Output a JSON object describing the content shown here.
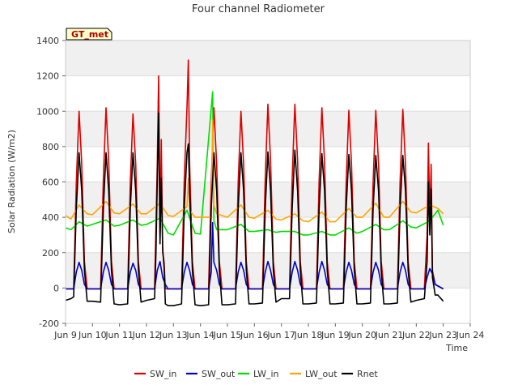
{
  "chart_data": {
    "type": "line",
    "title": "Four channel Radiometer",
    "xlabel": "Time",
    "ylabel": "Solar Radiation (W/m2)",
    "badge": "GT_met",
    "xlim": [
      9,
      24
    ],
    "ylim": [
      -200,
      1400
    ],
    "x_ticks": [
      9,
      10,
      11,
      12,
      13,
      14,
      15,
      16,
      17,
      18,
      19,
      20,
      21,
      22,
      23,
      24
    ],
    "x_tick_labels": [
      "Jun 9",
      "Jun 10",
      "Jun 11",
      "Jun 12",
      "Jun 13",
      "Jun 14",
      "Jun 15",
      "Jun 16",
      "Jun 17",
      "Jun 18",
      "Jun 19",
      "Jun 20",
      "Jun 21",
      "Jun 22",
      "Jun 23",
      "Jun 24"
    ],
    "y_ticks": [
      -200,
      0,
      200,
      400,
      600,
      800,
      1000,
      1200,
      1400
    ],
    "y_tick_labels": [
      "-200",
      "0",
      "200",
      "400",
      "600",
      "800",
      "1000",
      "1200",
      "1400"
    ],
    "series": [
      {
        "name": "SW_in",
        "color": "#dd0000",
        "x": [
          9.0,
          9.3,
          9.4,
          9.5,
          9.6,
          9.7,
          9.8,
          10.0,
          10.3,
          10.4,
          10.5,
          10.6,
          10.7,
          10.8,
          11.0,
          11.3,
          11.4,
          11.5,
          11.6,
          11.7,
          11.8,
          12.0,
          12.3,
          12.4,
          12.45,
          12.5,
          12.55,
          12.6,
          12.65,
          12.7,
          12.8,
          13.0,
          13.3,
          13.4,
          13.5,
          13.55,
          13.6,
          13.7,
          13.8,
          14.0,
          14.3,
          14.4,
          14.5,
          14.6,
          14.7,
          14.8,
          15.0,
          15.3,
          15.4,
          15.5,
          15.6,
          15.7,
          15.8,
          16.0,
          16.3,
          16.4,
          16.5,
          16.6,
          16.7,
          16.8,
          17.0,
          17.3,
          17.4,
          17.5,
          17.6,
          17.7,
          17.8,
          18.0,
          18.3,
          18.4,
          18.5,
          18.6,
          18.7,
          18.8,
          19.0,
          19.3,
          19.4,
          19.5,
          19.6,
          19.7,
          19.8,
          20.0,
          20.3,
          20.4,
          20.5,
          20.6,
          20.7,
          20.8,
          21.0,
          21.3,
          21.4,
          21.5,
          21.6,
          21.7,
          21.8,
          22.0,
          22.3,
          22.4,
          22.45,
          22.5,
          22.55,
          22.6,
          22.7,
          23.0
        ],
        "y": [
          -5,
          -5,
          600,
          1000,
          700,
          150,
          -5,
          -5,
          -5,
          620,
          1020,
          720,
          150,
          -5,
          -5,
          -5,
          600,
          985,
          700,
          150,
          -5,
          -5,
          -5,
          700,
          1200,
          300,
          840,
          200,
          150,
          -5,
          -5,
          -5,
          -5,
          620,
          1020,
          1290,
          700,
          150,
          -5,
          -5,
          -5,
          600,
          1020,
          700,
          150,
          -5,
          -5,
          -5,
          600,
          1000,
          700,
          150,
          -5,
          -5,
          -5,
          620,
          1040,
          720,
          150,
          -5,
          -5,
          -5,
          620,
          1040,
          720,
          150,
          -5,
          -5,
          -5,
          610,
          1020,
          710,
          150,
          -5,
          -5,
          -5,
          600,
          1005,
          700,
          150,
          -5,
          -5,
          -5,
          600,
          1005,
          700,
          150,
          -5,
          -5,
          -5,
          600,
          1010,
          700,
          150,
          -5,
          -5,
          -5,
          300,
          820,
          400,
          700,
          100,
          20,
          -5
        ]
      },
      {
        "name": "SW_out",
        "color": "#0000cc",
        "x": [
          9.0,
          9.3,
          9.4,
          9.5,
          9.6,
          9.7,
          9.8,
          10.0,
          10.3,
          10.4,
          10.5,
          10.6,
          10.7,
          10.8,
          11.0,
          11.3,
          11.4,
          11.5,
          11.6,
          11.7,
          11.8,
          12.0,
          12.3,
          12.4,
          12.5,
          12.6,
          12.7,
          12.8,
          13.0,
          13.3,
          13.4,
          13.5,
          13.6,
          13.7,
          13.8,
          14.0,
          14.3,
          14.4,
          14.45,
          14.5,
          14.6,
          14.7,
          14.8,
          15.0,
          15.3,
          15.4,
          15.5,
          15.6,
          15.7,
          15.8,
          16.0,
          16.3,
          16.4,
          16.5,
          16.6,
          16.7,
          16.8,
          17.0,
          17.3,
          17.4,
          17.5,
          17.6,
          17.7,
          17.8,
          18.0,
          18.3,
          18.4,
          18.5,
          18.6,
          18.7,
          18.8,
          19.0,
          19.3,
          19.4,
          19.5,
          19.6,
          19.7,
          19.8,
          20.0,
          20.3,
          20.4,
          20.5,
          20.6,
          20.7,
          20.8,
          21.0,
          21.3,
          21.4,
          21.5,
          21.6,
          21.7,
          21.8,
          22.0,
          22.3,
          22.4,
          22.5,
          22.6,
          22.7,
          23.0
        ],
        "y": [
          -5,
          -5,
          90,
          145,
          100,
          20,
          -5,
          -5,
          -5,
          90,
          145,
          100,
          20,
          -5,
          -5,
          -5,
          90,
          140,
          100,
          20,
          -5,
          -5,
          -5,
          100,
          150,
          60,
          20,
          -5,
          -5,
          -5,
          90,
          145,
          100,
          20,
          -5,
          -5,
          -5,
          90,
          370,
          145,
          100,
          20,
          -5,
          -5,
          -5,
          90,
          145,
          100,
          20,
          -5,
          -5,
          -5,
          90,
          150,
          100,
          20,
          -5,
          -5,
          -5,
          90,
          150,
          100,
          20,
          -5,
          -5,
          -5,
          90,
          150,
          100,
          20,
          -5,
          -5,
          -5,
          90,
          145,
          100,
          20,
          -5,
          -5,
          -5,
          90,
          145,
          100,
          20,
          -5,
          -5,
          -5,
          90,
          145,
          100,
          20,
          -5,
          -5,
          -5,
          60,
          110,
          80,
          20,
          -5
        ]
      },
      {
        "name": "LW_in",
        "color": "#00dd00",
        "x": [
          9.0,
          9.2,
          9.5,
          9.8,
          10.0,
          10.5,
          10.8,
          11.0,
          11.5,
          11.8,
          12.0,
          12.5,
          12.8,
          13.0,
          13.5,
          13.8,
          14.0,
          14.45,
          14.5,
          14.6,
          15.0,
          15.5,
          15.8,
          16.0,
          16.5,
          16.8,
          17.0,
          17.5,
          17.8,
          18.0,
          18.5,
          18.8,
          19.0,
          19.5,
          19.8,
          20.0,
          20.5,
          20.8,
          21.0,
          21.5,
          21.8,
          22.0,
          22.5,
          22.8,
          23.0
        ],
        "y": [
          340,
          330,
          375,
          350,
          360,
          385,
          350,
          355,
          385,
          355,
          360,
          395,
          310,
          300,
          440,
          310,
          305,
          1110,
          380,
          330,
          330,
          360,
          320,
          320,
          330,
          315,
          320,
          320,
          300,
          300,
          320,
          300,
          300,
          340,
          310,
          320,
          360,
          330,
          330,
          380,
          345,
          340,
          380,
          440,
          355
        ]
      },
      {
        "name": "LW_out",
        "color": "#ffa500",
        "x": [
          9.0,
          9.2,
          9.5,
          9.8,
          10.0,
          10.5,
          10.8,
          11.0,
          11.5,
          11.8,
          12.0,
          12.5,
          12.8,
          13.0,
          13.5,
          13.55,
          13.6,
          13.8,
          14.0,
          14.4,
          14.45,
          14.5,
          14.6,
          15.0,
          15.5,
          15.8,
          16.0,
          16.5,
          16.8,
          17.0,
          17.5,
          17.8,
          18.0,
          18.5,
          18.8,
          19.0,
          19.5,
          19.8,
          20.0,
          20.5,
          20.8,
          21.0,
          21.5,
          21.8,
          22.0,
          22.5,
          22.8,
          23.0
        ],
        "y": [
          410,
          390,
          470,
          420,
          415,
          490,
          425,
          420,
          475,
          420,
          420,
          480,
          410,
          405,
          460,
          620,
          440,
          400,
          400,
          400,
          950,
          470,
          420,
          400,
          470,
          400,
          395,
          440,
          390,
          385,
          420,
          380,
          375,
          430,
          375,
          375,
          450,
          400,
          400,
          480,
          400,
          400,
          490,
          430,
          425,
          470,
          450,
          420
        ]
      },
      {
        "name": "Rnet",
        "color": "#000000",
        "x": [
          9.0,
          9.2,
          9.3,
          9.4,
          9.5,
          9.6,
          9.7,
          9.8,
          10.0,
          10.3,
          10.4,
          10.5,
          10.6,
          10.7,
          10.8,
          11.0,
          11.3,
          11.4,
          11.5,
          11.6,
          11.7,
          11.8,
          12.0,
          12.3,
          12.35,
          12.4,
          12.45,
          12.5,
          12.55,
          12.6,
          12.65,
          12.7,
          12.8,
          13.0,
          13.3,
          13.4,
          13.5,
          13.55,
          13.6,
          13.7,
          13.8,
          14.0,
          14.3,
          14.4,
          14.5,
          14.6,
          14.7,
          14.8,
          15.0,
          15.3,
          15.4,
          15.5,
          15.6,
          15.7,
          15.8,
          16.0,
          16.3,
          16.4,
          16.5,
          16.6,
          16.7,
          16.8,
          17.0,
          17.3,
          17.4,
          17.5,
          17.6,
          17.7,
          17.8,
          18.0,
          18.3,
          18.4,
          18.5,
          18.6,
          18.7,
          18.8,
          19.0,
          19.3,
          19.4,
          19.5,
          19.6,
          19.7,
          19.8,
          20.0,
          20.3,
          20.4,
          20.5,
          20.6,
          20.7,
          20.8,
          21.0,
          21.3,
          21.4,
          21.5,
          21.6,
          21.7,
          21.8,
          22.0,
          22.3,
          22.4,
          22.45,
          22.5,
          22.55,
          22.6,
          22.7,
          22.8,
          23.0
        ],
        "y": [
          -70,
          -60,
          -50,
          450,
          765,
          550,
          100,
          -75,
          -75,
          -80,
          450,
          765,
          550,
          100,
          -90,
          -95,
          -90,
          450,
          765,
          550,
          100,
          -80,
          -70,
          -60,
          200,
          600,
          990,
          250,
          620,
          220,
          120,
          -90,
          -100,
          -100,
          -90,
          450,
          765,
          815,
          550,
          100,
          -95,
          -100,
          -95,
          450,
          765,
          550,
          100,
          -95,
          -95,
          -90,
          450,
          765,
          550,
          100,
          -90,
          -90,
          -85,
          450,
          770,
          550,
          100,
          -80,
          -60,
          -60,
          450,
          780,
          550,
          100,
          -90,
          -90,
          -85,
          450,
          760,
          550,
          100,
          -90,
          -90,
          -85,
          450,
          755,
          550,
          100,
          -90,
          -90,
          -85,
          450,
          750,
          550,
          100,
          -90,
          -90,
          -85,
          450,
          750,
          550,
          100,
          -80,
          -70,
          -60,
          150,
          600,
          300,
          560,
          60,
          -40,
          -40,
          -75
        ]
      }
    ]
  }
}
